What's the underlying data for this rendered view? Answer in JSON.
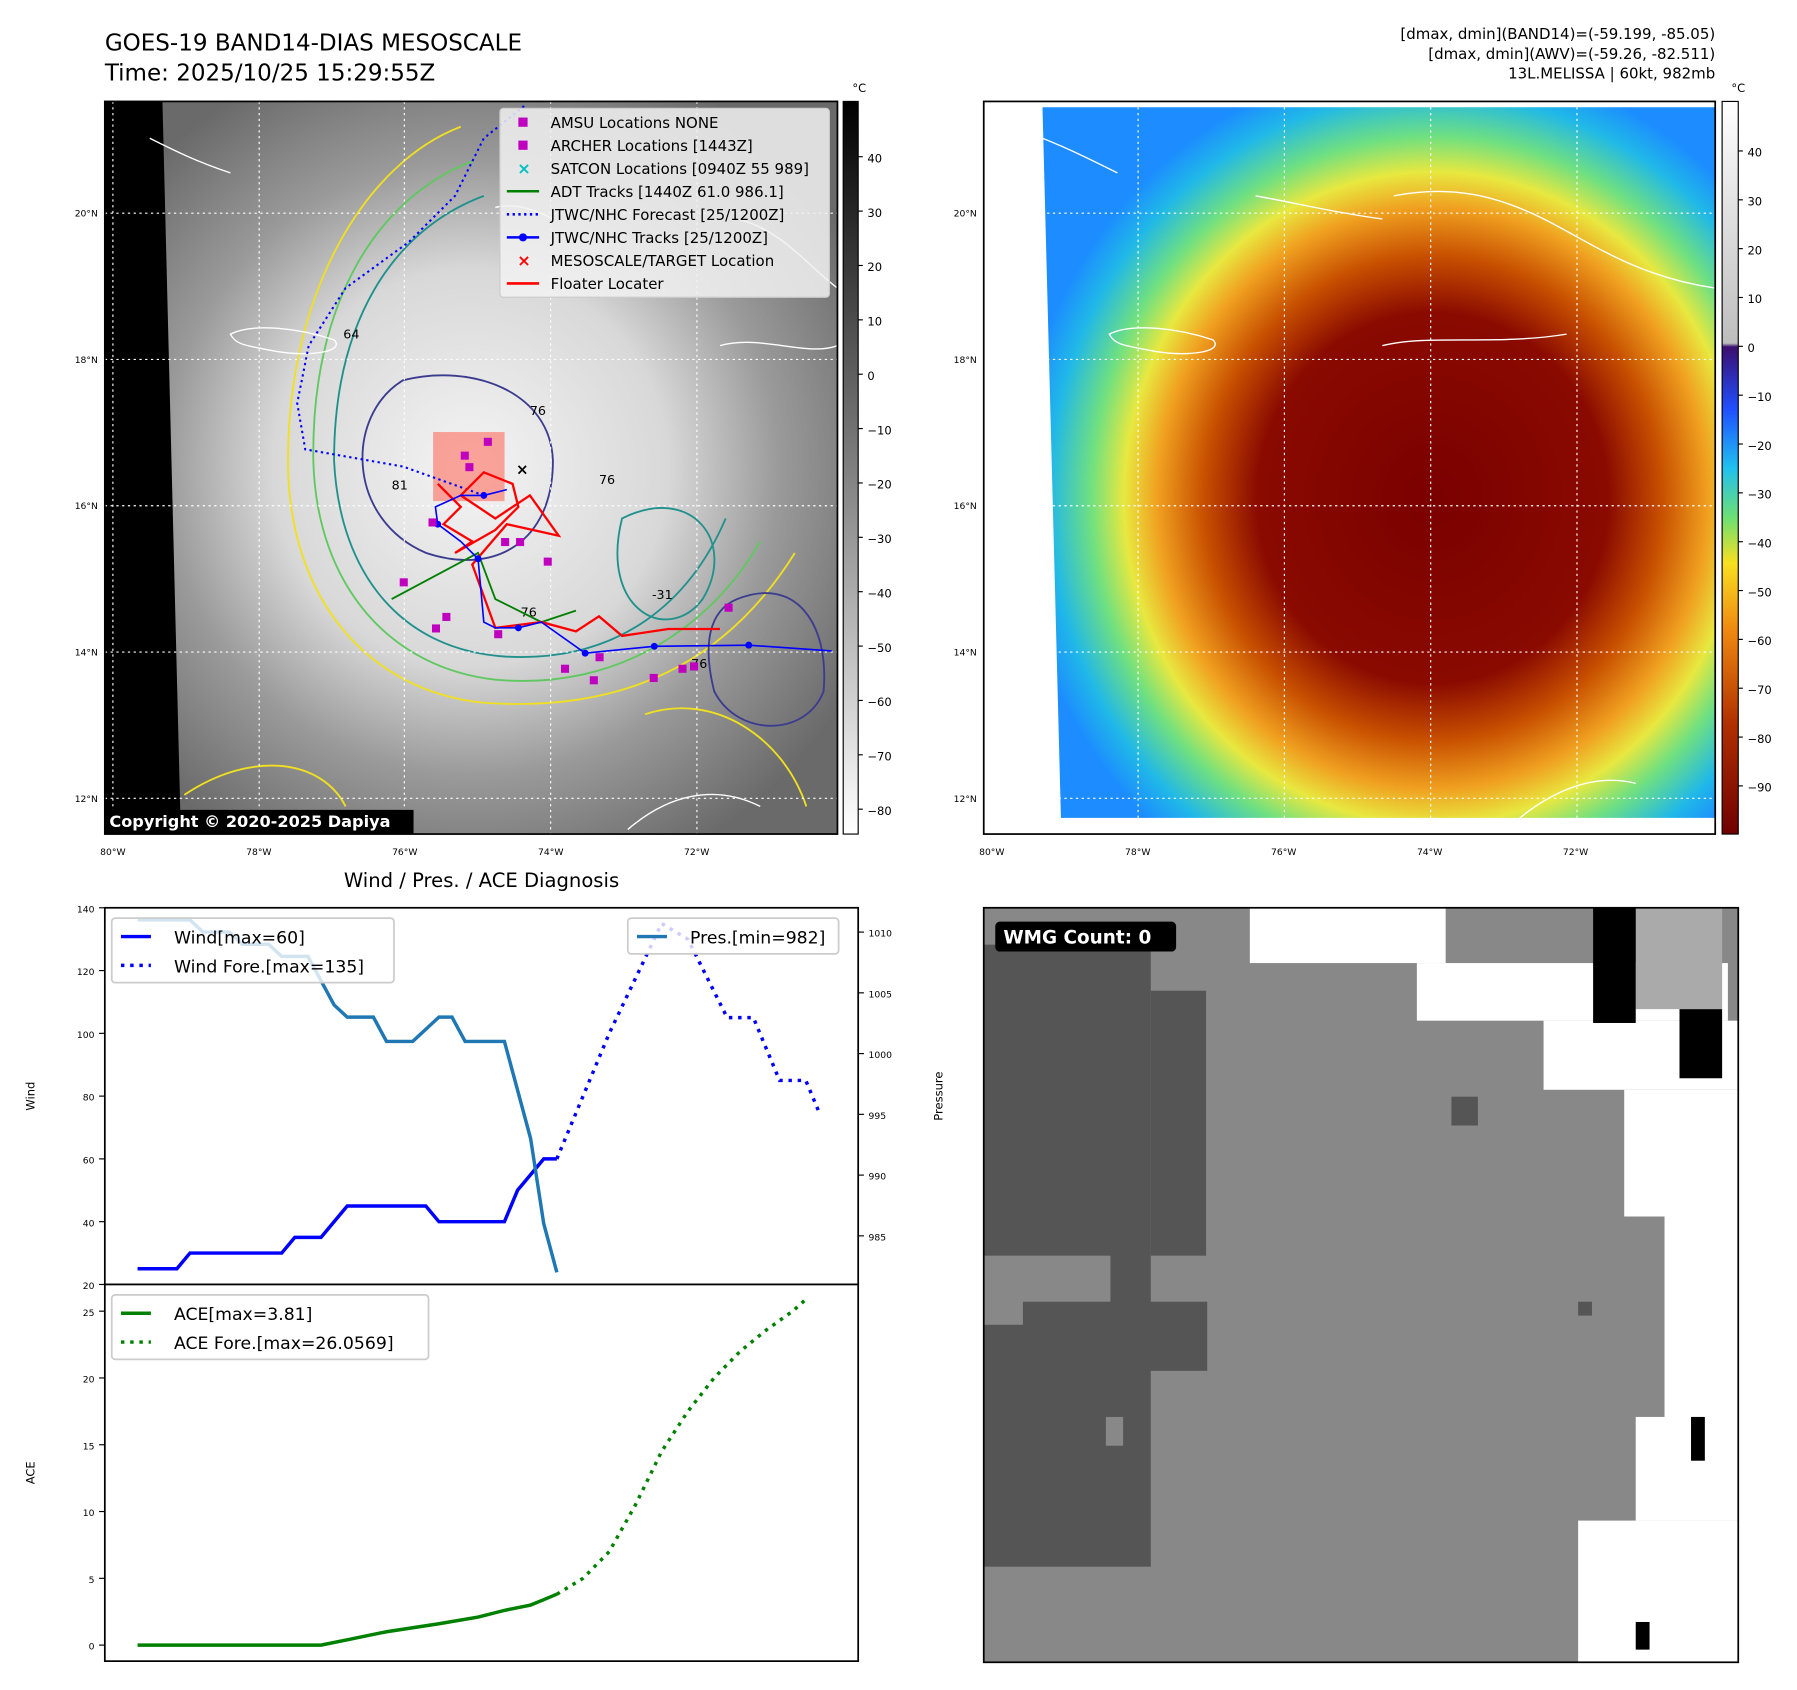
{
  "map_panel": {
    "title_line1": "GOES-19 BAND14-DIAS MESOSCALE",
    "title_line2": "Time: 2025/10/25 15:29:55Z",
    "copyright": "Copyright © 2020-2025 Dapiya",
    "colorbar": {
      "unit": "°C",
      "ticks": [
        "40",
        "30",
        "20",
        "10",
        "0",
        "−10",
        "−20",
        "−30",
        "−40",
        "−50",
        "−60",
        "−70",
        "−80"
      ]
    },
    "lat_ticks": [
      "20°N",
      "18°N",
      "16°N",
      "14°N",
      "12°N"
    ],
    "lon_ticks": [
      "80°W",
      "78°W",
      "76°W",
      "74°W",
      "72°W"
    ],
    "contour_labels": [
      "76",
      "81",
      "76",
      "76",
      "64",
      "-31",
      "76"
    ],
    "legend": [
      {
        "label": "AMSU Locations NONE",
        "marker": "square",
        "color": "#bf00bf"
      },
      {
        "label": "ARCHER Locations [1443Z]",
        "marker": "square",
        "color": "#bf00bf"
      },
      {
        "label": "SATCON Locations [0940Z 55 989]",
        "marker": "x",
        "color": "#00bfbf"
      },
      {
        "label": "ADT Tracks [1440Z 61.0 986.1]",
        "marker": "line",
        "color": "#008000"
      },
      {
        "label": "JTWC/NHC Forecast [25/1200Z]",
        "marker": "dotted",
        "color": "#0000ff"
      },
      {
        "label": "JTWC/NHC Tracks [25/1200Z]",
        "marker": "line-dot",
        "color": "#0000ff"
      },
      {
        "label": "MESOSCALE/TARGET Location",
        "marker": "x",
        "color": "#ff0000"
      },
      {
        "label": "Floater Locater",
        "marker": "line",
        "color": "#ff0000"
      }
    ]
  },
  "awv_panel": {
    "stats": [
      "[dmax, dmin](BAND14)=(-59.199, -85.05)",
      "[dmax, dmin](AWV)=(-59.26, -82.511)",
      "13L.MELISSA | 60kt, 982mb"
    ],
    "colorbar": {
      "unit": "°C",
      "ticks": [
        "40",
        "30",
        "20",
        "10",
        "0",
        "−10",
        "−20",
        "−30",
        "−40",
        "−50",
        "−60",
        "−70",
        "−80",
        "−90"
      ]
    },
    "lat_ticks": [
      "20°N",
      "18°N",
      "16°N",
      "14°N",
      "12°N"
    ],
    "lon_ticks": [
      "80°W",
      "78°W",
      "76°W",
      "74°W",
      "72°W"
    ]
  },
  "chart_data": [
    {
      "type": "line",
      "title": "Wind / Pres. / ACE Diagnosis",
      "ylabel": "Wind",
      "y2label": "Pressure",
      "ylim": [
        20,
        140
      ],
      "y2lim": [
        981,
        1012
      ],
      "yticks": [
        20,
        40,
        60,
        80,
        100,
        120,
        140
      ],
      "y2ticks": [
        985,
        990,
        995,
        1000,
        1005,
        1010
      ],
      "xlim": [
        -2.5,
        55
      ],
      "series": [
        {
          "name": "Wind[max=60]",
          "axis": "left",
          "color": "#0000ff",
          "style": "solid",
          "x": [
            0,
            3,
            4,
            11,
            12,
            14,
            16,
            22,
            23,
            28,
            29,
            30,
            31,
            32
          ],
          "y": [
            25,
            25,
            30,
            30,
            35,
            35,
            45,
            45,
            40,
            40,
            50,
            55,
            60,
            60
          ]
        },
        {
          "name": "Wind Fore.[max=135]",
          "axis": "left",
          "color": "#0000ff",
          "style": "dotted",
          "x": [
            32,
            36,
            40,
            42,
            45,
            47,
            49,
            51,
            52
          ],
          "y": [
            60,
            100,
            135,
            130,
            105,
            105,
            85,
            85,
            75
          ]
        },
        {
          "name": "Pres.[min=982]",
          "axis": "right",
          "color": "#1f77b4",
          "style": "solid",
          "x": [
            0,
            4,
            5,
            7,
            8,
            10,
            11,
            13,
            14,
            15,
            16,
            18,
            19,
            21,
            23,
            24,
            25,
            28,
            30,
            31,
            32
          ],
          "y": [
            1011,
            1011,
            1010,
            1010,
            1009,
            1009,
            1008,
            1008,
            1006,
            1004,
            1003,
            1003,
            1001,
            1001,
            1003,
            1003,
            1001,
            1001,
            993,
            986,
            982
          ]
        }
      ]
    },
    {
      "type": "line",
      "ylabel": "ACE",
      "ylim": [
        -1.2,
        27
      ],
      "yticks": [
        0,
        5,
        10,
        15,
        20,
        25
      ],
      "xlim": [
        -2.5,
        55
      ],
      "series": [
        {
          "name": "ACE[max=3.81]",
          "color": "#008000",
          "style": "solid",
          "x": [
            0,
            14,
            16,
            19,
            21,
            23,
            26,
            28,
            30,
            31,
            32
          ],
          "y": [
            0,
            0,
            0.4,
            1.0,
            1.3,
            1.6,
            2.1,
            2.6,
            3.0,
            3.4,
            3.81
          ]
        },
        {
          "name": "ACE Fore.[max=26.0569]",
          "color": "#008000",
          "style": "dotted",
          "x": [
            32,
            34,
            36,
            38,
            40,
            42,
            44,
            46,
            48,
            50,
            51.2
          ],
          "y": [
            3.81,
            5,
            7,
            10.5,
            14.5,
            17.5,
            20,
            22,
            23.6,
            25,
            26.06
          ]
        }
      ]
    }
  ],
  "wmg_panel": {
    "label": "WMG Count: 0"
  }
}
